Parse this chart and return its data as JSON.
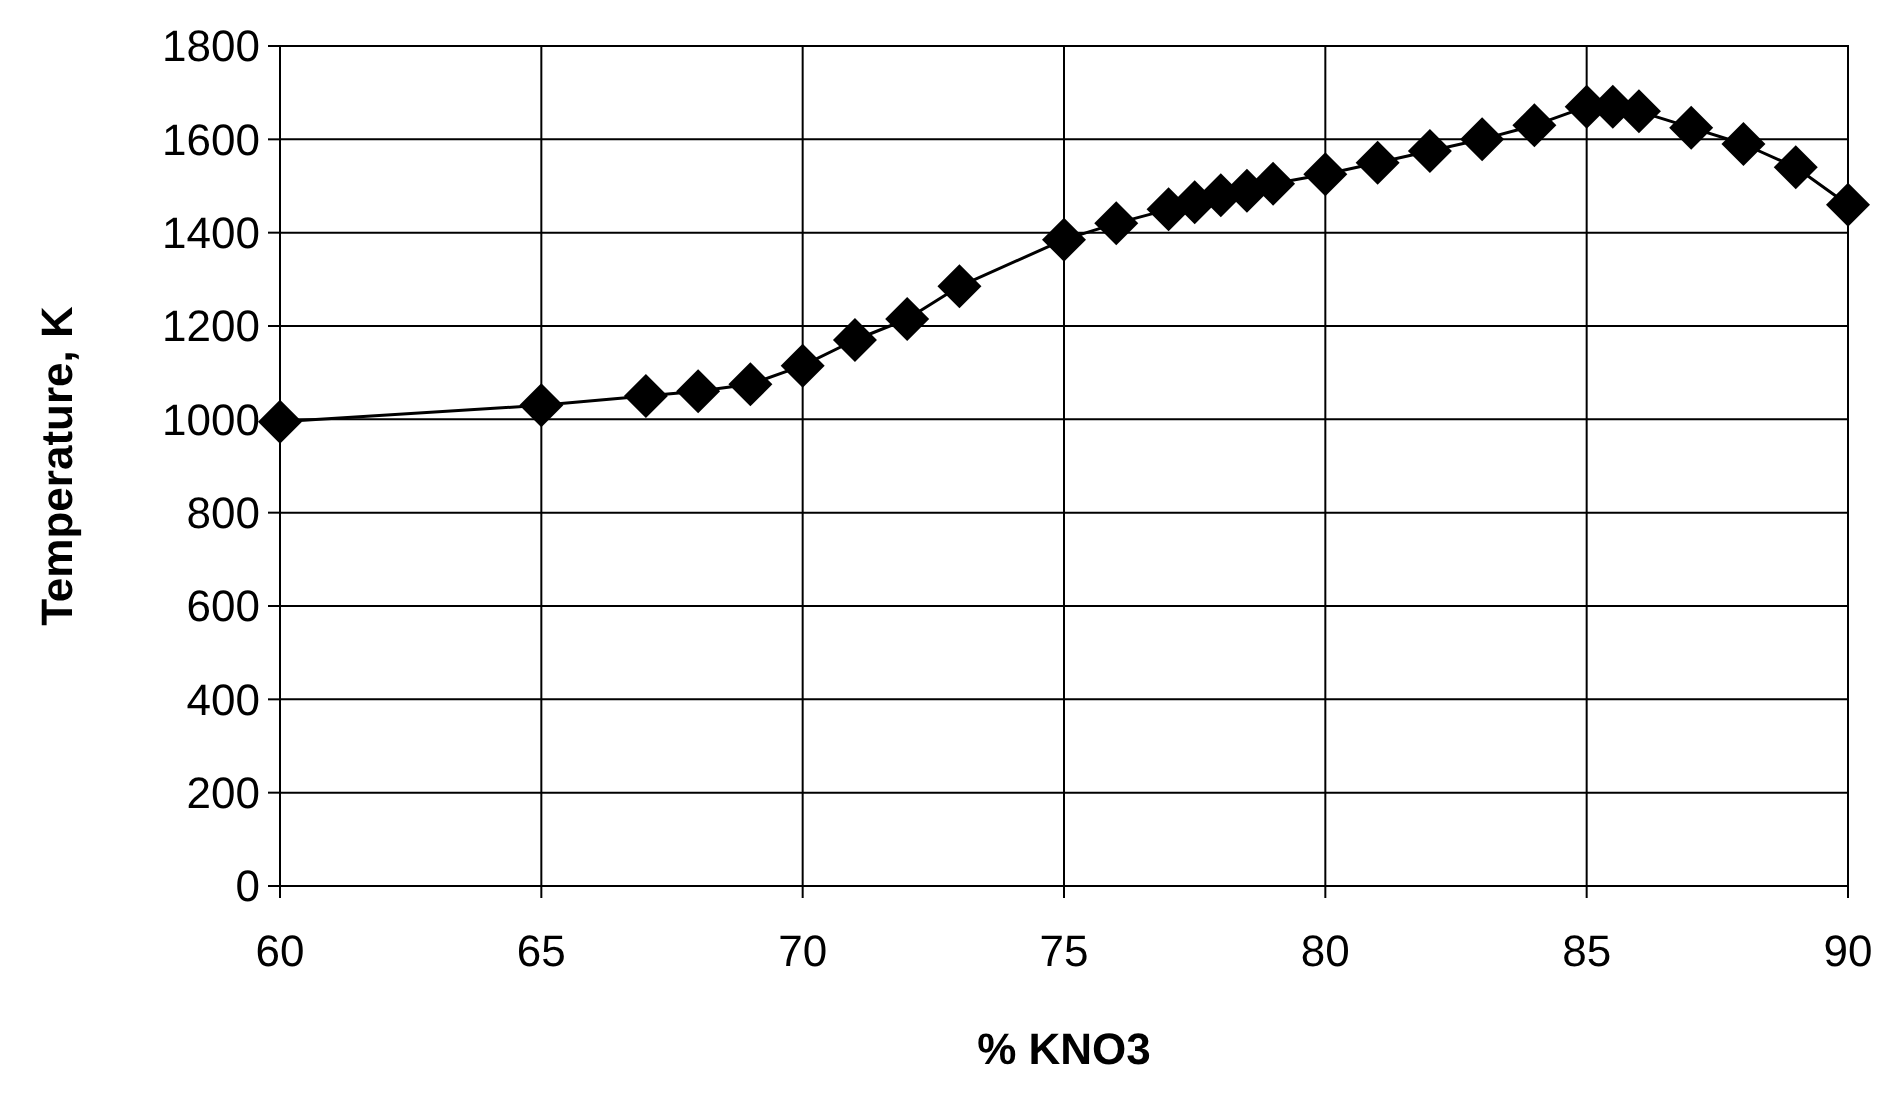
{
  "chart_data": {
    "type": "line",
    "xlabel": "% KNO3",
    "ylabel": "Temperature, K",
    "x": [
      60,
      65,
      67,
      68,
      69,
      70,
      71,
      72,
      73,
      75,
      76,
      77,
      77.5,
      78,
      78.5,
      79,
      80,
      81,
      82,
      83,
      84,
      85,
      85.5,
      86,
      87,
      88,
      89,
      90
    ],
    "series": [
      {
        "color": "#000000",
        "values": [
          995,
          1030,
          1050,
          1060,
          1075,
          1115,
          1170,
          1215,
          1285,
          1385,
          1420,
          1450,
          1465,
          1480,
          1490,
          1505,
          1525,
          1550,
          1575,
          1600,
          1630,
          1670,
          1670,
          1660,
          1625,
          1590,
          1540,
          1460
        ]
      }
    ],
    "xlim": [
      60,
      90
    ],
    "xticks": [
      60,
      65,
      70,
      75,
      80,
      85,
      90
    ],
    "ylim": [
      0,
      1800
    ],
    "yticks": [
      0,
      200,
      400,
      600,
      800,
      1000,
      1200,
      1400,
      1600,
      1800
    ],
    "grid": true,
    "marker": "diamond",
    "line_style": "solid"
  }
}
